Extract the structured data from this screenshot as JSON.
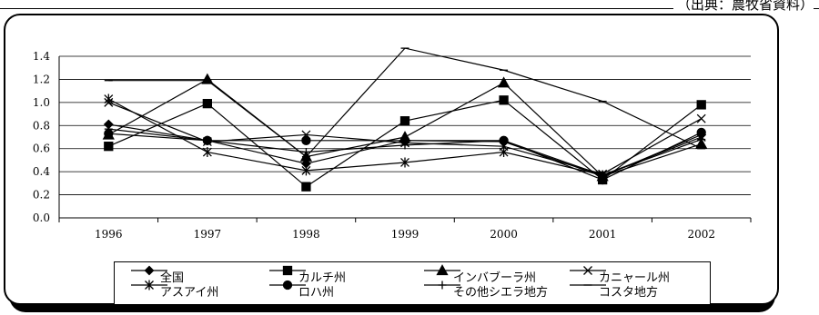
{
  "source_note": "（出典：農牧省資料）",
  "chart_data": {
    "type": "line",
    "x": [
      1996,
      1997,
      1998,
      1999,
      2000,
      2001,
      2002
    ],
    "ylim": [
      0.0,
      1.4
    ],
    "yticks": [
      "0.0",
      "0.2",
      "0.4",
      "0.6",
      "0.8",
      "1.0",
      "1.2",
      "1.4"
    ],
    "grid": true,
    "legend_position": "bottom",
    "series": [
      {
        "name": "全国",
        "marker": "diamond",
        "values": [
          0.81,
          0.67,
          0.47,
          0.67,
          0.66,
          0.36,
          0.72
        ]
      },
      {
        "name": "カルチ州",
        "marker": "square",
        "values": [
          0.62,
          0.99,
          0.27,
          0.84,
          1.02,
          0.33,
          0.98
        ]
      },
      {
        "name": "インバブーラ州",
        "marker": "triangle",
        "values": [
          0.72,
          1.2,
          0.53,
          0.7,
          1.17,
          0.36,
          0.64
        ]
      },
      {
        "name": "カニャール州",
        "marker": "x",
        "values": [
          1.0,
          0.66,
          0.72,
          0.65,
          0.62,
          0.38,
          0.86
        ]
      },
      {
        "name": "アスアイ州",
        "marker": "asterisk",
        "values": [
          1.03,
          0.57,
          0.41,
          0.48,
          0.57,
          0.37,
          0.7
        ]
      },
      {
        "name": "ロハ州",
        "marker": "circle",
        "values": [
          0.73,
          0.67,
          0.67,
          0.67,
          0.67,
          0.33,
          0.74
        ]
      },
      {
        "name": "その他シエラ地方",
        "marker": "plus",
        "values": [
          0.77,
          0.67,
          0.57,
          0.63,
          0.67,
          0.37,
          0.68
        ]
      },
      {
        "name": "コスタ地方",
        "marker": "dash",
        "values": [
          1.19,
          1.19,
          0.53,
          1.47,
          1.28,
          1.01,
          0.6
        ]
      }
    ]
  }
}
